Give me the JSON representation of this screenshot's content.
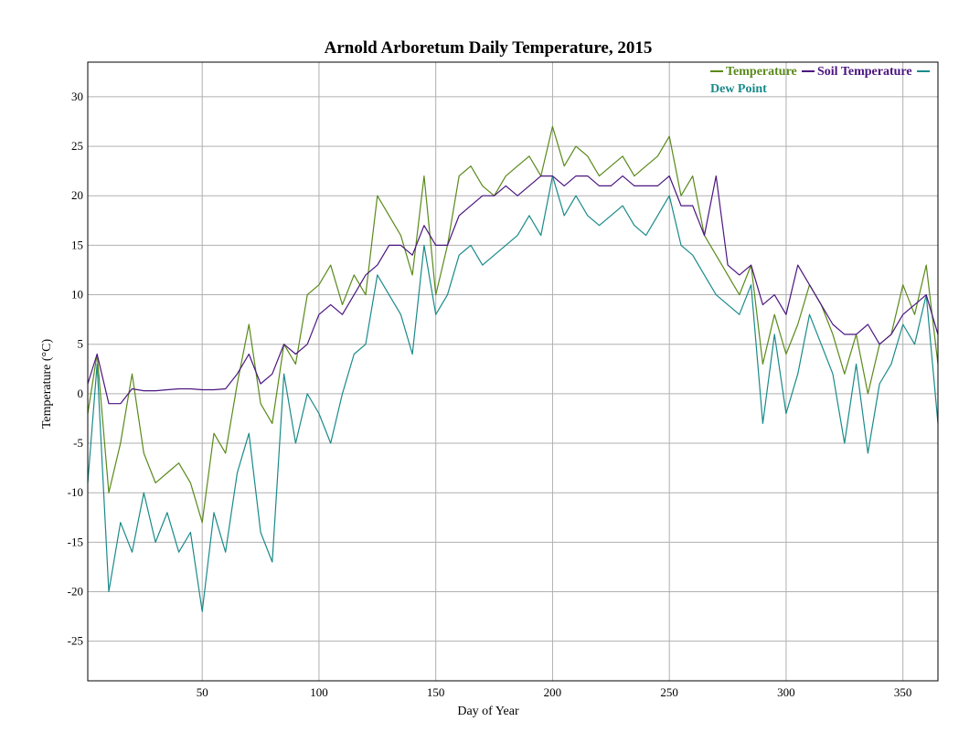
{
  "chart_data": {
    "type": "line",
    "title": "Arnold Arboretum Daily Temperature, 2015",
    "xlabel": "Day of Year",
    "ylabel": "Temperature (°C)",
    "xlim": [
      1,
      365
    ],
    "ylim": [
      -29,
      33.5
    ],
    "xticks": [
      50,
      100,
      150,
      200,
      250,
      300,
      350
    ],
    "yticks": [
      -25,
      -20,
      -15,
      -10,
      -5,
      0,
      5,
      10,
      15,
      20,
      25,
      30
    ],
    "grid": true,
    "legend_position": "top-right",
    "colors": {
      "Temperature": "#5a8a1a",
      "Soil Temperature": "#4b1580",
      "Dew Point": "#1a8a8a"
    },
    "x_step": 5,
    "series": [
      {
        "name": "Temperature",
        "x": [
          1,
          5,
          10,
          15,
          20,
          25,
          30,
          35,
          40,
          45,
          50,
          55,
          60,
          65,
          70,
          75,
          80,
          85,
          90,
          95,
          100,
          105,
          110,
          115,
          120,
          125,
          130,
          135,
          140,
          145,
          150,
          155,
          160,
          165,
          170,
          175,
          180,
          185,
          190,
          195,
          200,
          205,
          210,
          215,
          220,
          225,
          230,
          235,
          240,
          245,
          250,
          255,
          260,
          265,
          270,
          275,
          280,
          285,
          290,
          295,
          300,
          305,
          310,
          315,
          320,
          325,
          330,
          335,
          340,
          345,
          350,
          355,
          360,
          365
        ],
        "values": [
          -2,
          4,
          -10,
          -5,
          2,
          -6,
          -9,
          -8,
          -7,
          -9,
          -13,
          -4,
          -6,
          1,
          7,
          -1,
          -3,
          5,
          3,
          10,
          11,
          13,
          9,
          12,
          10,
          20,
          18,
          16,
          12,
          22,
          10,
          15,
          22,
          23,
          21,
          20,
          22,
          23,
          24,
          22,
          27,
          23,
          25,
          24,
          22,
          23,
          24,
          22,
          23,
          24,
          26,
          20,
          22,
          16,
          14,
          12,
          10,
          13,
          3,
          8,
          4,
          7,
          11,
          9,
          6,
          2,
          6,
          0,
          5,
          6,
          11,
          8,
          13,
          3
        ]
      },
      {
        "name": "Soil Temperature",
        "x": [
          1,
          5,
          10,
          15,
          20,
          25,
          30,
          35,
          40,
          45,
          50,
          55,
          60,
          65,
          70,
          75,
          80,
          85,
          90,
          95,
          100,
          105,
          110,
          115,
          120,
          125,
          130,
          135,
          140,
          145,
          150,
          155,
          160,
          165,
          170,
          175,
          180,
          185,
          190,
          195,
          200,
          205,
          210,
          215,
          220,
          225,
          230,
          235,
          240,
          245,
          250,
          255,
          260,
          265,
          270,
          275,
          280,
          285,
          290,
          295,
          300,
          305,
          310,
          315,
          320,
          325,
          330,
          335,
          340,
          345,
          350,
          355,
          360,
          365
        ],
        "values": [
          1,
          4,
          -1,
          -1,
          0.5,
          0.3,
          0.3,
          0.4,
          0.5,
          0.5,
          0.4,
          0.4,
          0.5,
          2,
          4,
          1,
          2,
          5,
          4,
          5,
          8,
          9,
          8,
          10,
          12,
          13,
          15,
          15,
          14,
          17,
          15,
          15,
          18,
          19,
          20,
          20,
          21,
          20,
          21,
          22,
          22,
          21,
          22,
          22,
          21,
          21,
          22,
          21,
          21,
          21,
          22,
          19,
          19,
          16,
          22,
          13,
          12,
          13,
          9,
          10,
          8,
          13,
          11,
          9,
          7,
          6,
          6,
          7,
          5,
          6,
          8,
          9,
          10,
          6
        ]
      },
      {
        "name": "Dew Point",
        "x": [
          1,
          5,
          10,
          15,
          20,
          25,
          30,
          35,
          40,
          45,
          50,
          55,
          60,
          65,
          70,
          75,
          80,
          85,
          90,
          95,
          100,
          105,
          110,
          115,
          120,
          125,
          130,
          135,
          140,
          145,
          150,
          155,
          160,
          165,
          170,
          175,
          180,
          185,
          190,
          195,
          200,
          205,
          210,
          215,
          220,
          225,
          230,
          235,
          240,
          245,
          250,
          255,
          260,
          265,
          270,
          275,
          280,
          285,
          290,
          295,
          300,
          305,
          310,
          315,
          320,
          325,
          330,
          335,
          340,
          345,
          350,
          355,
          360,
          365
        ],
        "values": [
          -9,
          3,
          -20,
          -13,
          -16,
          -10,
          -15,
          -12,
          -16,
          -14,
          -22,
          -12,
          -16,
          -8,
          -4,
          -14,
          -17,
          2,
          -5,
          0,
          -2,
          -5,
          0,
          4,
          5,
          12,
          10,
          8,
          4,
          15,
          8,
          10,
          14,
          15,
          13,
          14,
          15,
          16,
          18,
          16,
          22,
          18,
          20,
          18,
          17,
          18,
          19,
          17,
          16,
          18,
          20,
          15,
          14,
          12,
          10,
          9,
          8,
          11,
          -3,
          6,
          -2,
          2,
          8,
          5,
          2,
          -5,
          3,
          -6,
          1,
          3,
          7,
          5,
          10,
          -3
        ]
      }
    ]
  }
}
